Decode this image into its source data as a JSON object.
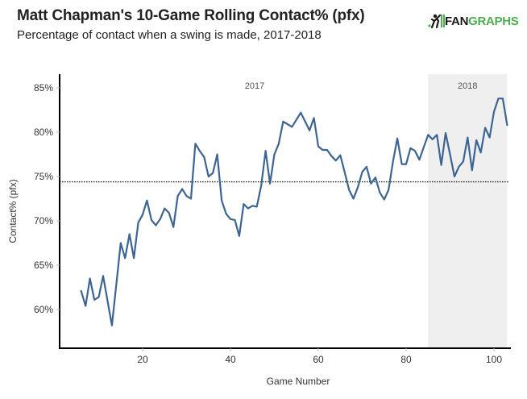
{
  "header": {
    "title": "Matt Chapman's 10-Game Rolling Contact% (pfx)",
    "subtitle": "Percentage of contact when a swing is made, 2017-2018",
    "logo_fan": "FAN",
    "logo_graphs": "GRAPHS"
  },
  "colors": {
    "line": "#3c6591",
    "shade": "#efefef",
    "axis": "#000000",
    "average_line": "#222222",
    "logo_green": "#4bae4f"
  },
  "chart_data": {
    "type": "line",
    "title": "Matt Chapman's 10-Game Rolling Contact% (pfx)",
    "subtitle": "Percentage of contact when a swing is made, 2017-2018",
    "xlabel": "Game Number",
    "ylabel": "Contact% (pfx)",
    "xlim": [
      0,
      104
    ],
    "ylim": [
      55.5,
      86.5
    ],
    "x_ticks": [
      20,
      40,
      60,
      80,
      100
    ],
    "x_tick_labels": [
      "20",
      "40",
      "60",
      "80",
      "100"
    ],
    "y_ticks": [
      60,
      65,
      70,
      75,
      80,
      85
    ],
    "y_tick_labels": [
      "60%",
      "65%",
      "70%",
      "75%",
      "80%",
      "85%"
    ],
    "grid": false,
    "average_line": {
      "value": 74.4,
      "style": "dotted"
    },
    "regions": [
      {
        "label": "2017",
        "x_start": 6,
        "x_end": 85,
        "shaded": false
      },
      {
        "label": "2018",
        "x_start": 85,
        "x_end": 103,
        "shaded": true
      }
    ],
    "series": [
      {
        "name": "10-Game Rolling Contact%",
        "x": [
          6,
          7,
          8,
          9,
          10,
          11,
          12,
          13,
          14,
          15,
          16,
          17,
          18,
          19,
          20,
          21,
          22,
          23,
          24,
          25,
          26,
          27,
          28,
          29,
          30,
          31,
          32,
          33,
          34,
          35,
          36,
          37,
          38,
          39,
          40,
          41,
          42,
          43,
          44,
          45,
          46,
          47,
          48,
          49,
          50,
          51,
          52,
          53,
          54,
          55,
          56,
          57,
          58,
          59,
          60,
          61,
          62,
          63,
          64,
          65,
          66,
          67,
          68,
          69,
          70,
          71,
          72,
          73,
          74,
          75,
          76,
          77,
          78,
          79,
          80,
          81,
          82,
          83,
          84,
          85,
          86,
          87,
          88,
          89,
          90,
          91,
          92,
          93,
          94,
          95,
          96,
          97,
          98,
          99,
          100,
          101,
          102,
          103
        ],
        "values": [
          62.1,
          60.4,
          63.5,
          61.1,
          61.4,
          63.8,
          61.0,
          58.2,
          62.8,
          67.5,
          65.8,
          68.5,
          65.8,
          69.8,
          70.7,
          72.3,
          70.1,
          69.5,
          70.2,
          71.4,
          70.9,
          69.3,
          72.8,
          73.6,
          72.8,
          72.5,
          78.7,
          77.9,
          77.2,
          75.0,
          75.4,
          77.5,
          72.3,
          70.8,
          70.2,
          70.1,
          68.3,
          71.9,
          71.4,
          71.7,
          71.6,
          74.0,
          77.9,
          74.2,
          77.5,
          78.7,
          81.2,
          80.9,
          80.6,
          81.4,
          82.2,
          81.2,
          80.2,
          81.6,
          78.4,
          78.0,
          78.0,
          77.3,
          76.8,
          77.4,
          75.5,
          73.5,
          72.5,
          73.8,
          75.5,
          76.1,
          74.2,
          74.9,
          73.2,
          72.4,
          73.5,
          76.7,
          79.3,
          76.4,
          76.4,
          78.2,
          77.9,
          76.9,
          78.3,
          79.7,
          79.2,
          79.7,
          76.3,
          79.9,
          77.5,
          75.0,
          76.1,
          76.7,
          79.4,
          75.7,
          79.1,
          77.7,
          80.5,
          79.4,
          82.3,
          83.8,
          83.8,
          80.8
        ]
      }
    ]
  }
}
